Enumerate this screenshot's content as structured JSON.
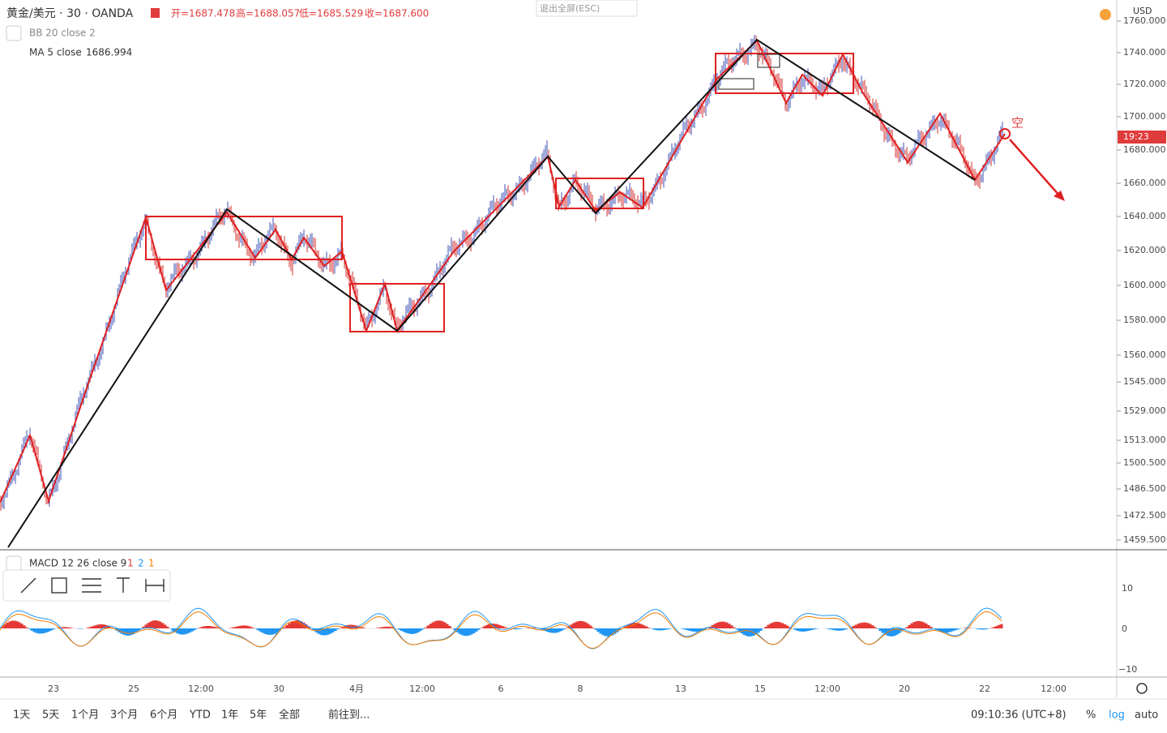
{
  "header": {
    "symbol": "黄金/美元 · 30 · OANDA",
    "open": "开=1687.478",
    "high": "高=1688.057",
    "low": "低=1685.529",
    "close": "收=1687.600"
  },
  "exit_button": "退出全屏(ESC)",
  "indicators": {
    "bb": "BB 20 close 2",
    "ma": "MA 5 close",
    "ma_value": "1686.994"
  },
  "currency": "USD",
  "price_axis": [
    "1760.000",
    "1740.000",
    "1720.000",
    "1700.000",
    "1680.000",
    "1660.000",
    "1640.000",
    "1620.000",
    "1600.000",
    "1580.000",
    "1560.000",
    "1545.000",
    "1529.000",
    "1513.000",
    "1500.500",
    "1486.500",
    "1472.500",
    "1459.500"
  ],
  "current_price_tag": "19:23",
  "annotation": "空",
  "macd": {
    "label": "MACD 12 26 close 9",
    "params": [
      "1",
      "2",
      "1"
    ],
    "axis": [
      "10",
      "0",
      "−10"
    ]
  },
  "time_axis": [
    "23",
    "25",
    "12:00",
    "30",
    "4月",
    "12:00",
    "6",
    "8",
    "13",
    "15",
    "12:00",
    "20",
    "22",
    "12:00"
  ],
  "ranges": [
    "1天",
    "5天",
    "1个月",
    "3个月",
    "6个月",
    "YTD",
    "1年",
    "5年",
    "全部"
  ],
  "goto": "前往到...",
  "clock": "09:10:36 (UTC+8)",
  "scale_buttons": [
    "%",
    "log",
    "auto"
  ]
}
